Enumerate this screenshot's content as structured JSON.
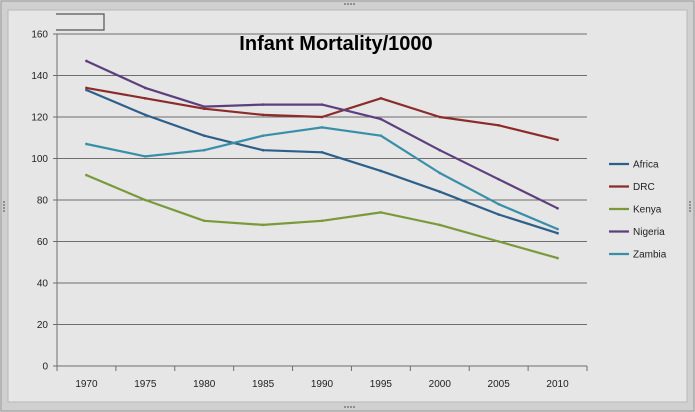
{
  "chart_data": {
    "type": "line",
    "title": "Infant Mortality/1000",
    "xlabel": "",
    "ylabel": "",
    "categories": [
      "1970",
      "1975",
      "1980",
      "1985",
      "1990",
      "1995",
      "2000",
      "2005",
      "2010"
    ],
    "ylim": [
      0,
      160
    ],
    "yticks": [
      0,
      20,
      40,
      60,
      80,
      100,
      120,
      140,
      160
    ],
    "grid": true,
    "legend_position": "right",
    "series": [
      {
        "name": "Africa",
        "color": "#2e5f8a",
        "values": [
          133,
          121,
          111,
          104,
          103,
          94,
          84,
          73,
          64
        ]
      },
      {
        "name": "DRC",
        "color": "#8b2c2a",
        "values": [
          134,
          129,
          124,
          121,
          120,
          129,
          120,
          116,
          109
        ]
      },
      {
        "name": "Kenya",
        "color": "#7a9a3a",
        "values": [
          92,
          80,
          70,
          68,
          70,
          74,
          68,
          60,
          52
        ]
      },
      {
        "name": "Nigeria",
        "color": "#5e3f7e",
        "values": [
          147,
          134,
          125,
          126,
          126,
          119,
          104,
          90,
          76
        ]
      },
      {
        "name": "Zambia",
        "color": "#3a8fa8",
        "values": [
          107,
          101,
          104,
          111,
          115,
          111,
          93,
          78,
          66
        ]
      }
    ]
  }
}
